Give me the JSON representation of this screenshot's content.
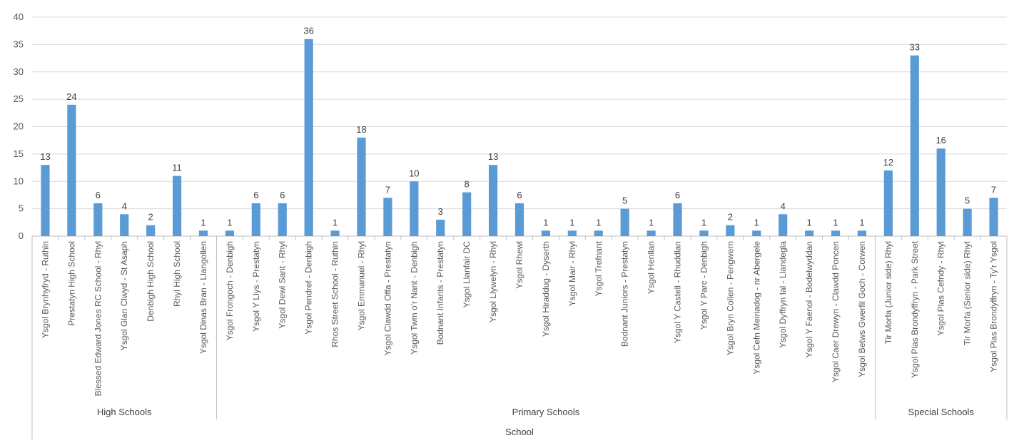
{
  "chart_data": {
    "type": "bar",
    "title": "",
    "xlabel": "School",
    "ylabel": "",
    "ylim": [
      0,
      40
    ],
    "yticks": [
      0,
      5,
      10,
      15,
      20,
      25,
      30,
      35,
      40
    ],
    "grid": true,
    "legend": "none",
    "bar_color": "#5B9BD5",
    "groups": [
      {
        "label": "High Schools",
        "categories": [
          "Ysgol Brynhyfryd - Ruthin",
          "Prestatyn High School",
          "Blessed Edward Jones RC School - Rhyl",
          "Ysgol Glan Clwyd - St Asaph",
          "Denbigh High School",
          "Rhyl High School",
          "Ysgol Dinas Bran - Llangollen"
        ],
        "values": [
          13,
          24,
          6,
          4,
          2,
          11,
          1
        ]
      },
      {
        "label": "Primary Schools",
        "categories": [
          "Ysgol Frongoch - Denbigh",
          "Ysgol Y Llys - Prestatyn",
          "Ysgol Dewi Sant - Rhyl",
          "Ysgol Pendref - Denbigh",
          "Rhos Street School - Ruthin",
          "Ysgol Emmanuel - Rhyl",
          "Ysgol Clawdd Offa - Prestatyn",
          "Ysgol Twm o'r Nant - Denbigh",
          "Bodnant Infants - Prestatyn",
          "Ysgol Llanfair DC",
          "Ysgol Llywelyn - Rhyl",
          "Ysgol Rhewl",
          "Ysgol Hiraddug - Dyserth",
          "Ysgol Mair - Rhyl",
          "Ysgol Trefnant",
          "Bodnant Juniors - Prestatyn",
          "Ysgol Henllan",
          "Ysgol Y Castell - Rhuddlan",
          "Ysgol Y Parc - Denbigh",
          "Ysgol Bryn Collen - Pengwern",
          "Ysgol Cefn Meiriadog - nr Abergele",
          "Ysgol Dyffryn Ial - Llandegla",
          "Ysgol Y Faenol - Bodelwyddan",
          "Ysgol Caer Drewyn - Clawdd Poncen",
          "Ysgol Betws Gwerfil Goch - Corwen"
        ],
        "values": [
          1,
          6,
          6,
          36,
          1,
          18,
          7,
          10,
          3,
          8,
          13,
          6,
          1,
          1,
          1,
          5,
          1,
          6,
          1,
          2,
          1,
          4,
          1,
          1,
          1
        ]
      },
      {
        "label": "Special Schools",
        "categories": [
          "Tir Morfa (Junior side) Rhyl",
          "Ysgol Plas Brondyffryn - Park Street",
          "Ysgol Plas Cefndy - Rhyl",
          "Tir Morfa (Senior side) Rhyl",
          "Ysgol Plas Brondyffryn - Ty'r Ysgol"
        ],
        "values": [
          12,
          33,
          16,
          5,
          7
        ]
      }
    ]
  }
}
